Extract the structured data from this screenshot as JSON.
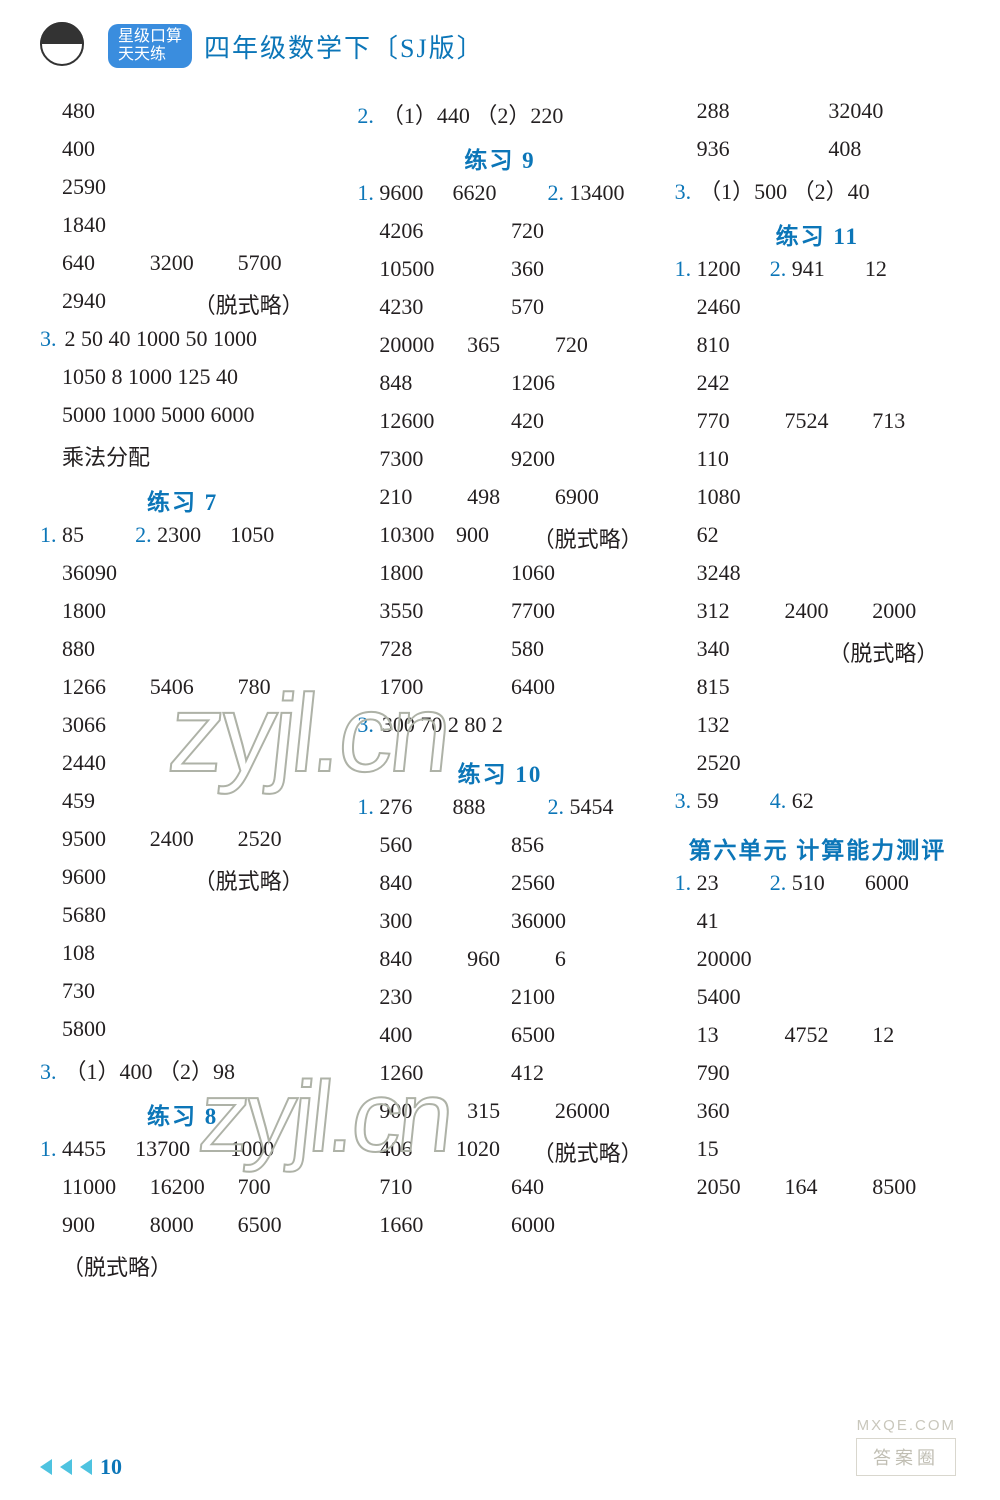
{
  "header": {
    "bubble_line1": "星级口算",
    "bubble_line2": "天天练",
    "title": "四年级数学下〔SJ版〕"
  },
  "footer": {
    "page_number": "10"
  },
  "watermarks": {
    "text": "zyjl.cn",
    "mx": "MXQE.COM",
    "box": "答案圈"
  },
  "col1": [
    {
      "type": "row",
      "cells": [
        "480"
      ]
    },
    {
      "type": "row",
      "cells": [
        "400"
      ]
    },
    {
      "type": "row",
      "cells": [
        "2590"
      ]
    },
    {
      "type": "row",
      "cells": [
        "1840"
      ]
    },
    {
      "type": "row",
      "cells": [
        "640",
        "3200",
        "5700"
      ]
    },
    {
      "type": "row",
      "cells": [
        "2940",
        "（脱式略）"
      ]
    },
    {
      "type": "row",
      "num": "3.",
      "cells": [
        "2  50  40  1000  50  1000"
      ]
    },
    {
      "type": "row",
      "cells": [
        "1050   8   1000   125   40"
      ]
    },
    {
      "type": "row",
      "cells": [
        "5000   1000   5000   6000"
      ]
    },
    {
      "type": "row",
      "cells": [
        "乘法分配"
      ]
    },
    {
      "type": "title",
      "text": "练习 7"
    },
    {
      "type": "row",
      "seg": [
        {
          "num": "1.",
          "v": "85"
        },
        {
          "num": "2.",
          "v": "2300"
        },
        {
          "v": "1050"
        }
      ]
    },
    {
      "type": "row",
      "cells": [
        "36090"
      ]
    },
    {
      "type": "row",
      "cells": [
        "1800"
      ]
    },
    {
      "type": "row",
      "cells": [
        "880"
      ]
    },
    {
      "type": "row",
      "cells": [
        "1266",
        "5406",
        "780"
      ]
    },
    {
      "type": "row",
      "cells": [
        "3066"
      ]
    },
    {
      "type": "row",
      "cells": [
        "2440"
      ]
    },
    {
      "type": "row",
      "cells": [
        "459"
      ]
    },
    {
      "type": "row",
      "cells": [
        "9500",
        "2400",
        "2520"
      ]
    },
    {
      "type": "row",
      "cells": [
        "9600",
        "（脱式略）"
      ]
    },
    {
      "type": "row",
      "cells": [
        "5680"
      ]
    },
    {
      "type": "row",
      "cells": [
        "108"
      ]
    },
    {
      "type": "row",
      "cells": [
        "730"
      ]
    },
    {
      "type": "row",
      "cells": [
        "5800"
      ]
    },
    {
      "type": "row",
      "num": "3.",
      "cells": [
        "（1）400   （2）98"
      ]
    },
    {
      "type": "title",
      "text": "练习 8"
    },
    {
      "type": "row",
      "seg": [
        {
          "num": "1.",
          "v": "4455"
        },
        {
          "v": "13700"
        },
        {
          "v": "1000"
        }
      ]
    },
    {
      "type": "row",
      "cells": [
        "11000",
        "16200",
        "700"
      ]
    },
    {
      "type": "row",
      "cells": [
        "900",
        "8000",
        "6500"
      ]
    },
    {
      "type": "row",
      "cells": [
        "（脱式略）"
      ]
    }
  ],
  "col2": [
    {
      "type": "row",
      "num": "2.",
      "cells": [
        "（1）440   （2）220"
      ]
    },
    {
      "type": "title",
      "text": "练习 9"
    },
    {
      "type": "row",
      "seg": [
        {
          "num": "1.",
          "v": "9600"
        },
        {
          "v": "6620"
        },
        {
          "num": "2.",
          "v": "13400"
        }
      ]
    },
    {
      "type": "row",
      "cells": [
        "4206",
        "720"
      ]
    },
    {
      "type": "row",
      "cells": [
        "10500",
        "360"
      ]
    },
    {
      "type": "row",
      "cells": [
        "4230",
        "570"
      ]
    },
    {
      "type": "row",
      "cells": [
        "20000",
        "365",
        "720"
      ]
    },
    {
      "type": "row",
      "cells": [
        "848",
        "1206"
      ]
    },
    {
      "type": "row",
      "cells": [
        "12600",
        "420"
      ]
    },
    {
      "type": "row",
      "cells": [
        "7300",
        "9200"
      ]
    },
    {
      "type": "row",
      "cells": [
        "210",
        "498",
        "6900"
      ]
    },
    {
      "type": "row",
      "cells": [
        "10300",
        "900",
        "（脱式略）"
      ]
    },
    {
      "type": "row",
      "cells": [
        "1800",
        "1060"
      ]
    },
    {
      "type": "row",
      "cells": [
        "3550",
        "7700"
      ]
    },
    {
      "type": "row",
      "cells": [
        "728",
        "580"
      ]
    },
    {
      "type": "row",
      "cells": [
        "1700",
        "6400"
      ]
    },
    {
      "type": "row",
      "num": "3.",
      "cells": [
        "300  70  2   80  2"
      ]
    },
    {
      "type": "title",
      "text": "练习 10"
    },
    {
      "type": "row",
      "seg": [
        {
          "num": "1.",
          "v": "276"
        },
        {
          "v": "888"
        },
        {
          "num": "2.",
          "v": "5454"
        }
      ]
    },
    {
      "type": "row",
      "cells": [
        "560",
        "856"
      ]
    },
    {
      "type": "row",
      "cells": [
        "840",
        "2560"
      ]
    },
    {
      "type": "row",
      "cells": [
        "300",
        "36000"
      ]
    },
    {
      "type": "row",
      "cells": [
        "840",
        "960",
        "6"
      ]
    },
    {
      "type": "row",
      "cells": [
        "230",
        "2100"
      ]
    },
    {
      "type": "row",
      "cells": [
        "400",
        "6500"
      ]
    },
    {
      "type": "row",
      "cells": [
        "1260",
        "412"
      ]
    },
    {
      "type": "row",
      "cells": [
        "900",
        "315",
        "26000"
      ]
    },
    {
      "type": "row",
      "cells": [
        "406",
        "1020",
        "（脱式略）"
      ]
    },
    {
      "type": "row",
      "cells": [
        "710",
        "640"
      ]
    },
    {
      "type": "row",
      "cells": [
        "1660",
        "6000"
      ]
    }
  ],
  "col3": [
    {
      "type": "row",
      "cells": [
        "288",
        "32040"
      ]
    },
    {
      "type": "row",
      "cells": [
        "936",
        "408"
      ]
    },
    {
      "type": "row",
      "num": "3.",
      "cells": [
        "（1）500   （2）40"
      ]
    },
    {
      "type": "title",
      "text": "练习 11"
    },
    {
      "type": "row",
      "seg": [
        {
          "num": "1.",
          "v": "1200"
        },
        {
          "num": "2.",
          "v": "941"
        },
        {
          "v": "12"
        }
      ]
    },
    {
      "type": "row",
      "cells": [
        "2460"
      ]
    },
    {
      "type": "row",
      "cells": [
        "810"
      ]
    },
    {
      "type": "row",
      "cells": [
        "242"
      ]
    },
    {
      "type": "row",
      "cells": [
        "770",
        "7524",
        "713"
      ]
    },
    {
      "type": "row",
      "cells": [
        "110"
      ]
    },
    {
      "type": "row",
      "cells": [
        "1080"
      ]
    },
    {
      "type": "row",
      "cells": [
        "62"
      ]
    },
    {
      "type": "row",
      "cells": [
        "3248"
      ]
    },
    {
      "type": "row",
      "cells": [
        "312",
        "2400",
        "2000"
      ]
    },
    {
      "type": "row",
      "cells": [
        "340",
        "（脱式略）"
      ]
    },
    {
      "type": "row",
      "cells": [
        "815"
      ]
    },
    {
      "type": "row",
      "cells": [
        "132"
      ]
    },
    {
      "type": "row",
      "cells": [
        "2520"
      ]
    },
    {
      "type": "row",
      "seg": [
        {
          "num": "3.",
          "v": "59"
        },
        {
          "num": "4.",
          "v": "62"
        },
        {
          "v": ""
        }
      ]
    },
    {
      "type": "title",
      "text": "第六单元 计算能力测评"
    },
    {
      "type": "row",
      "seg": [
        {
          "num": "1.",
          "v": "23"
        },
        {
          "num": "2.",
          "v": "510"
        },
        {
          "v": "6000"
        }
      ]
    },
    {
      "type": "row",
      "cells": [
        "41"
      ]
    },
    {
      "type": "row",
      "cells": [
        "20000"
      ]
    },
    {
      "type": "row",
      "cells": [
        "5400"
      ]
    },
    {
      "type": "row",
      "cells": [
        "13",
        "4752",
        "12"
      ]
    },
    {
      "type": "row",
      "cells": [
        "790"
      ]
    },
    {
      "type": "row",
      "cells": [
        "360"
      ]
    },
    {
      "type": "row",
      "cells": [
        "15"
      ]
    },
    {
      "type": "row",
      "cells": [
        "2050",
        "164",
        "8500"
      ]
    }
  ]
}
